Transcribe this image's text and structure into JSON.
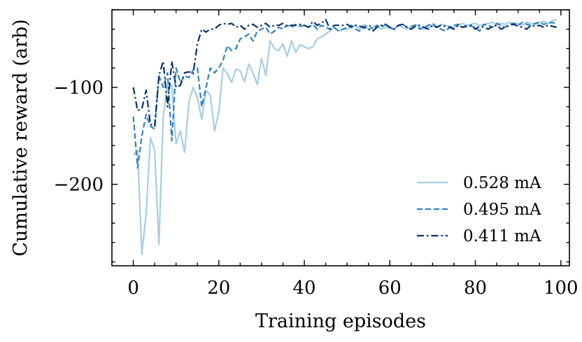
{
  "chart_data": {
    "type": "line",
    "title": "",
    "xlabel": "Training episodes",
    "ylabel": "Cumulative reward (arb)",
    "xlim": [
      -5,
      102
    ],
    "ylim": [
      -284,
      -20
    ],
    "x_ticks": [
      0,
      20,
      40,
      60,
      80,
      100
    ],
    "x_tick_labels": [
      "0",
      "20",
      "40",
      "60",
      "80",
      "100"
    ],
    "y_ticks": [
      -100,
      -200
    ],
    "y_tick_labels": [
      "−100",
      "−200"
    ],
    "grid": false,
    "legend_position": "lower-right",
    "series": [
      {
        "name": "0.528 mA",
        "color": "#a6cee3",
        "style": "solid",
        "x": [
          0,
          1,
          2,
          3,
          4,
          5,
          6,
          7,
          8,
          9,
          10,
          11,
          12,
          13,
          14,
          15,
          16,
          17,
          18,
          19,
          20,
          21,
          22,
          23,
          24,
          25,
          26,
          27,
          28,
          29,
          30,
          31,
          32,
          33,
          34,
          35,
          36,
          37,
          38,
          39,
          40,
          41,
          42,
          43,
          44,
          45,
          46,
          47,
          48,
          49,
          50,
          51,
          52,
          53,
          54,
          55,
          56,
          57,
          58,
          59,
          60,
          61,
          62,
          63,
          64,
          65,
          66,
          67,
          68,
          69,
          70,
          71,
          72,
          73,
          74,
          75,
          76,
          77,
          78,
          79,
          80,
          81,
          82,
          83,
          84,
          85,
          86,
          87,
          88,
          89,
          90,
          91,
          92,
          93,
          94,
          95,
          96,
          97,
          98,
          99
        ],
        "values": [
          -170,
          -165,
          -272,
          -230,
          -152,
          -165,
          -262,
          -130,
          -96,
          -98,
          -158,
          -145,
          -167,
          -115,
          -100,
          -111,
          -133,
          -103,
          -108,
          -145,
          -125,
          -80,
          -86,
          -95,
          -81,
          -83,
          -94,
          -76,
          -85,
          -97,
          -70,
          -88,
          -52,
          -60,
          -62,
          -55,
          -68,
          -52,
          -64,
          -56,
          -58,
          -60,
          -58,
          -50,
          -48,
          -45,
          -42,
          -38,
          -42,
          -40,
          -40,
          -38,
          -36,
          -40,
          -35,
          -40,
          -38,
          -36,
          -40,
          -38,
          -39,
          -40,
          -36,
          -38,
          -40,
          -38,
          -35,
          -38,
          -40,
          -38,
          -36,
          -38,
          -35,
          -36,
          -37,
          -38,
          -36,
          -34,
          -36,
          -35,
          -34,
          -36,
          -35,
          -34,
          -33,
          -36,
          -34,
          -35,
          -33,
          -34,
          -34,
          -36,
          -33,
          -34,
          -35,
          -33,
          -32,
          -34,
          -31,
          -30
        ]
      },
      {
        "name": "0.495 mA",
        "color": "#3182bd",
        "style": "dashed",
        "x": [
          0,
          1,
          2,
          3,
          4,
          5,
          6,
          7,
          8,
          9,
          10,
          11,
          12,
          13,
          14,
          15,
          16,
          17,
          18,
          19,
          20,
          21,
          22,
          23,
          24,
          25,
          26,
          27,
          28,
          29,
          30,
          31,
          32,
          33,
          34,
          35,
          36,
          37,
          38,
          39,
          40,
          41,
          42,
          43,
          44,
          45,
          46,
          47,
          48,
          49,
          50,
          51,
          52,
          53,
          54,
          55,
          56,
          57,
          58,
          59,
          60,
          61,
          62,
          63,
          64,
          65,
          66,
          67,
          68,
          69,
          70,
          71,
          72,
          73,
          74,
          75,
          76,
          77,
          78,
          79,
          80,
          81,
          82,
          83,
          84,
          85,
          86,
          87,
          88,
          89,
          90,
          91,
          92,
          93,
          94,
          95,
          96,
          97,
          98,
          99
        ],
        "values": [
          -130,
          -183,
          -150,
          -128,
          -140,
          -143,
          -88,
          -100,
          -85,
          -155,
          -80,
          -95,
          -88,
          -90,
          -82,
          -80,
          -120,
          -100,
          -80,
          -85,
          -80,
          -72,
          -57,
          -62,
          -60,
          -50,
          -48,
          -45,
          -52,
          -42,
          -40,
          -38,
          -45,
          -42,
          -38,
          -40,
          -36,
          -38,
          -35,
          -37,
          -36,
          -38,
          -35,
          -40,
          -36,
          -38,
          -40,
          -38,
          -42,
          -40,
          -38,
          -36,
          -40,
          -42,
          -38,
          -35,
          -40,
          -36,
          -38,
          -35,
          -38,
          -40,
          -36,
          -35,
          -38,
          -37,
          -36,
          -40,
          -38,
          -36,
          -34,
          -38,
          -40,
          -42,
          -38,
          -36,
          -35,
          -38,
          -36,
          -37,
          -38,
          -42,
          -35,
          -36,
          -38,
          -34,
          -36,
          -38,
          -35,
          -34,
          -36,
          -33,
          -35,
          -36,
          -34,
          -33,
          -35,
          -34,
          -33,
          -35
        ]
      },
      {
        "name": "0.411 mA",
        "color": "#08306b",
        "style": "dashdot",
        "x": [
          0,
          1,
          2,
          3,
          4,
          5,
          6,
          7,
          8,
          9,
          10,
          11,
          12,
          13,
          14,
          15,
          16,
          17,
          18,
          19,
          20,
          21,
          22,
          23,
          24,
          25,
          26,
          27,
          28,
          29,
          30,
          31,
          32,
          33,
          34,
          35,
          36,
          37,
          38,
          39,
          40,
          41,
          42,
          43,
          44,
          45,
          46,
          47,
          48,
          49,
          50,
          51,
          52,
          53,
          54,
          55,
          56,
          57,
          58,
          59,
          60,
          61,
          62,
          63,
          64,
          65,
          66,
          67,
          68,
          69,
          70,
          71,
          72,
          73,
          74,
          75,
          76,
          77,
          78,
          79,
          80,
          81,
          82,
          83,
          84,
          85,
          86,
          87,
          88,
          89,
          90,
          91,
          92,
          93,
          94,
          95,
          96,
          97,
          98,
          99
        ],
        "values": [
          -100,
          -124,
          -122,
          -103,
          -138,
          -140,
          -88,
          -73,
          -120,
          -73,
          -100,
          -98,
          -85,
          -84,
          -86,
          -55,
          -40,
          -43,
          -40,
          -40,
          -36,
          -34,
          -35,
          -34,
          -38,
          -36,
          -40,
          -36,
          -35,
          -38,
          -36,
          -34,
          -38,
          -36,
          -36,
          -34,
          -37,
          -36,
          -36,
          -35,
          -36,
          -38,
          -32,
          -36,
          -34,
          -30,
          -40,
          -36,
          -36,
          -36,
          -35,
          -38,
          -36,
          -37,
          -38,
          -40,
          -42,
          -38,
          -36,
          -35,
          -38,
          -40,
          -36,
          -35,
          -38,
          -40,
          -37,
          -36,
          -38,
          -40,
          -36,
          -38,
          -36,
          -37,
          -38,
          -40,
          -36,
          -38,
          -37,
          -36,
          -40,
          -37,
          -38,
          -40,
          -37,
          -36,
          -40,
          -38,
          -36,
          -35,
          -37,
          -38,
          -40,
          -36,
          -37,
          -36,
          -38,
          -36,
          -37,
          -38
        ]
      }
    ]
  }
}
